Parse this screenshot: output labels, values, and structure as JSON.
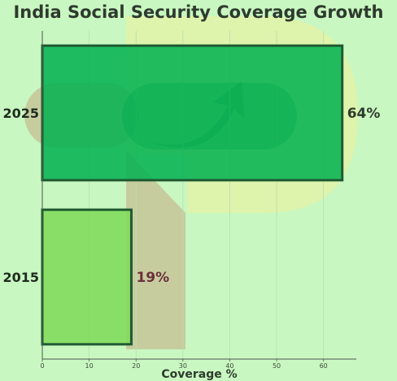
{
  "chart_data": {
    "type": "bar",
    "orientation": "horizontal",
    "title": "India Social Security Coverage Growth",
    "xlabel": "Coverage %",
    "ylabel": "",
    "categories": [
      "2025",
      "2015"
    ],
    "values": [
      64,
      19
    ],
    "value_labels": [
      "64%",
      "19%"
    ],
    "xlim": [
      0,
      67
    ],
    "xticks": [
      0,
      10,
      20,
      30,
      40,
      50,
      60
    ],
    "grid": true,
    "colors": {
      "background": "#c9f7c1",
      "bar_2025": "#00b04f",
      "bar_2015": "#7ed957",
      "bar_edge": "#1f5a33",
      "label_2025": "#2e3a2e",
      "label_2015": "#6b2f3a",
      "watermark_yellow": "#e4f2a4",
      "watermark_tan": "#c7b08a",
      "watermark_green": "#1a8a4a"
    },
    "background_graphic": "growth-arrow-watermark"
  }
}
